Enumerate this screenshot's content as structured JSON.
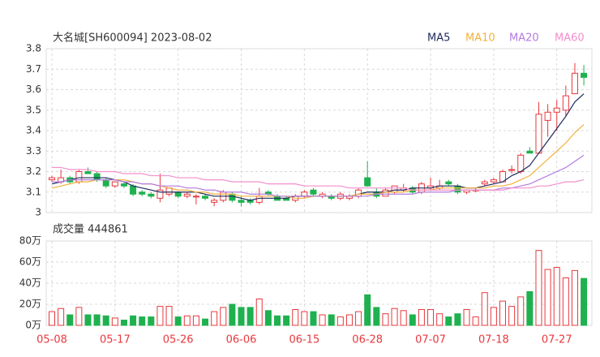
{
  "chart_data": [
    {
      "type": "candlestick",
      "title": "大名城[SH600094] 2023-08-02",
      "up_color": "#e8383d",
      "down_color": "#1fb14f",
      "open": [
        3.16,
        3.15,
        3.17,
        3.15,
        3.2,
        3.19,
        3.16,
        3.13,
        3.14,
        3.13,
        3.1,
        3.09,
        3.07,
        3.09,
        3.1,
        3.08,
        3.08,
        3.08,
        3.05,
        3.06,
        3.09,
        3.06,
        3.06,
        3.05,
        3.1,
        3.08,
        3.07,
        3.06,
        3.08,
        3.11,
        3.08,
        3.08,
        3.07,
        3.07,
        3.08,
        3.17,
        3.1,
        3.08,
        3.1,
        3.11,
        3.12,
        3.1,
        3.12,
        3.12,
        3.15,
        3.13,
        3.1,
        3.11,
        3.14,
        3.15,
        3.15,
        3.21,
        3.2,
        3.3,
        3.29,
        3.45,
        3.49,
        3.5,
        3.58,
        3.68
      ],
      "high": [
        3.18,
        3.21,
        3.18,
        3.21,
        3.22,
        3.2,
        3.17,
        3.15,
        3.15,
        3.14,
        3.11,
        3.1,
        3.19,
        3.12,
        3.1,
        3.1,
        3.09,
        3.09,
        3.07,
        3.11,
        3.1,
        3.08,
        3.07,
        3.12,
        3.11,
        3.09,
        3.08,
        3.09,
        3.11,
        3.12,
        3.1,
        3.09,
        3.1,
        3.09,
        3.12,
        3.25,
        3.12,
        3.12,
        3.13,
        3.14,
        3.13,
        3.15,
        3.17,
        3.16,
        3.16,
        3.14,
        3.11,
        3.12,
        3.16,
        3.17,
        3.21,
        3.23,
        3.29,
        3.32,
        3.54,
        3.53,
        3.55,
        3.62,
        3.73,
        3.72
      ],
      "low": [
        3.15,
        3.14,
        3.14,
        3.14,
        3.19,
        3.15,
        3.12,
        3.12,
        3.12,
        3.08,
        3.08,
        3.07,
        3.05,
        3.08,
        3.07,
        3.07,
        3.04,
        3.06,
        3.03,
        3.05,
        3.05,
        3.03,
        3.04,
        3.04,
        3.08,
        3.06,
        3.06,
        3.05,
        3.07,
        3.08,
        3.07,
        3.06,
        3.06,
        3.06,
        3.07,
        3.13,
        3.07,
        3.08,
        3.09,
        3.1,
        3.09,
        3.09,
        3.11,
        3.11,
        3.13,
        3.09,
        3.09,
        3.1,
        3.13,
        3.14,
        3.15,
        3.19,
        3.19,
        3.29,
        3.29,
        3.37,
        3.4,
        3.47,
        3.58,
        3.62
      ],
      "close": [
        3.17,
        3.17,
        3.15,
        3.2,
        3.19,
        3.16,
        3.13,
        3.15,
        3.13,
        3.09,
        3.09,
        3.08,
        3.11,
        3.12,
        3.08,
        3.09,
        3.08,
        3.07,
        3.06,
        3.1,
        3.06,
        3.05,
        3.05,
        3.08,
        3.09,
        3.06,
        3.06,
        3.08,
        3.1,
        3.09,
        3.09,
        3.07,
        3.09,
        3.08,
        3.11,
        3.13,
        3.08,
        3.11,
        3.13,
        3.12,
        3.1,
        3.14,
        3.13,
        3.13,
        3.14,
        3.1,
        3.11,
        3.11,
        3.15,
        3.16,
        3.2,
        3.21,
        3.28,
        3.29,
        3.48,
        3.49,
        3.51,
        3.57,
        3.68,
        3.66
      ],
      "series": [
        {
          "name": "MA5",
          "color": "#1f2a5c",
          "values": [
            3.14,
            3.15,
            3.16,
            3.17,
            3.17,
            3.17,
            3.17,
            3.16,
            3.15,
            3.13,
            3.12,
            3.11,
            3.1,
            3.1,
            3.1,
            3.1,
            3.1,
            3.09,
            3.08,
            3.08,
            3.08,
            3.07,
            3.06,
            3.07,
            3.07,
            3.07,
            3.07,
            3.08,
            3.08,
            3.08,
            3.08,
            3.08,
            3.08,
            3.08,
            3.09,
            3.1,
            3.1,
            3.1,
            3.11,
            3.11,
            3.12,
            3.12,
            3.12,
            3.13,
            3.13,
            3.13,
            3.12,
            3.12,
            3.13,
            3.14,
            3.15,
            3.18,
            3.2,
            3.23,
            3.29,
            3.35,
            3.41,
            3.47,
            3.54,
            3.58
          ]
        },
        {
          "name": "MA10",
          "color": "#f2b13b",
          "values": [
            3.12,
            3.13,
            3.14,
            3.15,
            3.15,
            3.16,
            3.16,
            3.16,
            3.16,
            3.15,
            3.14,
            3.14,
            3.13,
            3.12,
            3.11,
            3.11,
            3.1,
            3.1,
            3.09,
            3.09,
            3.09,
            3.08,
            3.08,
            3.08,
            3.08,
            3.08,
            3.08,
            3.07,
            3.07,
            3.08,
            3.08,
            3.08,
            3.08,
            3.08,
            3.09,
            3.09,
            3.09,
            3.1,
            3.1,
            3.1,
            3.11,
            3.11,
            3.11,
            3.12,
            3.12,
            3.12,
            3.12,
            3.12,
            3.12,
            3.13,
            3.13,
            3.14,
            3.16,
            3.18,
            3.22,
            3.26,
            3.3,
            3.34,
            3.39,
            3.43
          ]
        },
        {
          "name": "MA20",
          "color": "#b57be0",
          "values": [
            3.15,
            3.15,
            3.16,
            3.16,
            3.16,
            3.16,
            3.16,
            3.16,
            3.15,
            3.15,
            3.14,
            3.14,
            3.13,
            3.13,
            3.13,
            3.12,
            3.12,
            3.11,
            3.11,
            3.1,
            3.1,
            3.1,
            3.09,
            3.09,
            3.09,
            3.08,
            3.08,
            3.08,
            3.08,
            3.08,
            3.08,
            3.08,
            3.08,
            3.08,
            3.08,
            3.08,
            3.09,
            3.09,
            3.09,
            3.09,
            3.09,
            3.1,
            3.1,
            3.1,
            3.1,
            3.11,
            3.11,
            3.11,
            3.11,
            3.11,
            3.12,
            3.12,
            3.13,
            3.14,
            3.16,
            3.18,
            3.2,
            3.22,
            3.25,
            3.28
          ]
        },
        {
          "name": "MA60",
          "color": "#f28fcb",
          "values": [
            3.22,
            3.22,
            3.21,
            3.21,
            3.21,
            3.2,
            3.2,
            3.2,
            3.19,
            3.19,
            3.19,
            3.18,
            3.18,
            3.18,
            3.17,
            3.17,
            3.17,
            3.16,
            3.16,
            3.16,
            3.15,
            3.15,
            3.15,
            3.15,
            3.14,
            3.14,
            3.14,
            3.14,
            3.13,
            3.13,
            3.13,
            3.13,
            3.13,
            3.12,
            3.12,
            3.12,
            3.12,
            3.12,
            3.12,
            3.12,
            3.11,
            3.11,
            3.11,
            3.11,
            3.11,
            3.11,
            3.11,
            3.11,
            3.11,
            3.11,
            3.11,
            3.12,
            3.12,
            3.12,
            3.13,
            3.13,
            3.14,
            3.15,
            3.15,
            3.16
          ]
        }
      ],
      "ylim": [
        3,
        3.8
      ],
      "yticks": [
        3,
        3.1,
        3.2,
        3.3,
        3.4,
        3.5,
        3.6,
        3.7,
        3.8
      ],
      "grid": true
    },
    {
      "type": "bar",
      "title": "成交量 444861",
      "categories": [
        "05-08",
        null,
        null,
        null,
        null,
        null,
        null,
        "05-17",
        null,
        null,
        null,
        null,
        null,
        null,
        "05-26",
        null,
        null,
        null,
        null,
        null,
        null,
        "06-06",
        null,
        null,
        null,
        null,
        null,
        null,
        "06-15",
        null,
        null,
        null,
        null,
        null,
        null,
        "06-28",
        null,
        null,
        null,
        null,
        null,
        null,
        "07-07",
        null,
        null,
        null,
        null,
        null,
        null,
        "07-18",
        null,
        null,
        null,
        null,
        null,
        null,
        "07-27",
        null,
        null,
        null
      ],
      "values": [
        130000,
        160000,
        100000,
        170000,
        100000,
        100000,
        90000,
        70000,
        50000,
        90000,
        80000,
        80000,
        180000,
        180000,
        80000,
        90000,
        90000,
        60000,
        130000,
        170000,
        200000,
        170000,
        170000,
        250000,
        140000,
        90000,
        90000,
        150000,
        130000,
        130000,
        100000,
        100000,
        80000,
        100000,
        130000,
        290000,
        170000,
        110000,
        160000,
        140000,
        100000,
        150000,
        150000,
        110000,
        80000,
        110000,
        150000,
        80000,
        310000,
        170000,
        230000,
        180000,
        270000,
        320000,
        710000,
        530000,
        550000,
        450000,
        520000,
        444861
      ],
      "ylim": [
        0,
        800000
      ],
      "yticks": [
        {
          "value": 0,
          "label": "0万"
        },
        {
          "value": 200000,
          "label": "20万"
        },
        {
          "value": 400000,
          "label": "40万"
        },
        {
          "value": 600000,
          "label": "60万"
        },
        {
          "value": 800000,
          "label": "80万"
        }
      ],
      "grid": true
    }
  ]
}
